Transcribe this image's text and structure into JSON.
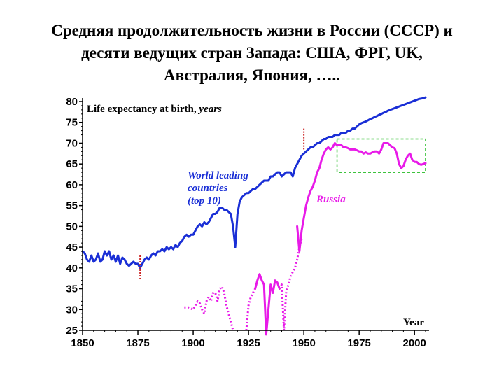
{
  "slide": {
    "title_lines": [
      "Средняя продолжительность жизни в России (СССР) и",
      "десяти ведущих стран Запада: США,  ФРГ,  UK,",
      "Австралия,  Япония, ….."
    ]
  },
  "chart_data": {
    "type": "line",
    "title": "Life expectancy at birth, years",
    "title_main": "Life expectancy at birth,",
    "title_unit": "years",
    "xlabel": "Year",
    "ylabel": "",
    "xlim": [
      1850,
      2005
    ],
    "ylim": [
      25,
      80
    ],
    "x_ticks": [
      1850,
      1875,
      1900,
      1925,
      1950,
      1975,
      2000
    ],
    "y_ticks": [
      25,
      30,
      35,
      40,
      45,
      50,
      55,
      60,
      65,
      70,
      75,
      80
    ],
    "grid": false,
    "annotations": [
      {
        "lines": [
          "World leading",
          "countries",
          "(top 10)"
        ],
        "color": "#1a2fd6"
      },
      {
        "lines": [
          "Russia"
        ],
        "color": "#e81ae8"
      }
    ],
    "colors": {
      "world": "#1a2fd6",
      "russia": "#e81ae8",
      "marker": "#cc2222",
      "box": "#22bb22"
    },
    "markers": [
      {
        "x": 1876,
        "y_from": 37,
        "y_to": 43
      },
      {
        "x": 1950,
        "y_from": 68.5,
        "y_to": 73.5
      }
    ],
    "highlight_box": {
      "x": [
        1965,
        2005
      ],
      "y": [
        63,
        71
      ]
    },
    "series": [
      {
        "name": "World leading countries (top 10)",
        "color": "#1a2fd6",
        "style": "solid",
        "points": [
          [
            1850,
            44
          ],
          [
            1851,
            43.5
          ],
          [
            1852,
            42
          ],
          [
            1853,
            41.5
          ],
          [
            1854,
            43
          ],
          [
            1855,
            41.5
          ],
          [
            1856,
            42
          ],
          [
            1857,
            43.5
          ],
          [
            1858,
            41.5
          ],
          [
            1859,
            42
          ],
          [
            1860,
            44
          ],
          [
            1861,
            43
          ],
          [
            1862,
            44
          ],
          [
            1863,
            42
          ],
          [
            1864,
            43
          ],
          [
            1865,
            41.5
          ],
          [
            1866,
            43
          ],
          [
            1867,
            41
          ],
          [
            1868,
            42.5
          ],
          [
            1869,
            42
          ],
          [
            1870,
            41
          ],
          [
            1871,
            40.5
          ],
          [
            1872,
            41
          ],
          [
            1873,
            41.5
          ],
          [
            1874,
            41
          ],
          [
            1875,
            41
          ],
          [
            1876,
            40
          ],
          [
            1877,
            41
          ],
          [
            1878,
            42
          ],
          [
            1879,
            42.5
          ],
          [
            1880,
            42
          ],
          [
            1881,
            43
          ],
          [
            1882,
            43.5
          ],
          [
            1883,
            43
          ],
          [
            1884,
            44
          ],
          [
            1885,
            44
          ],
          [
            1886,
            44.5
          ],
          [
            1887,
            44
          ],
          [
            1888,
            45
          ],
          [
            1889,
            44.5
          ],
          [
            1890,
            45
          ],
          [
            1891,
            44.5
          ],
          [
            1892,
            45.5
          ],
          [
            1893,
            45
          ],
          [
            1894,
            46
          ],
          [
            1895,
            46.5
          ],
          [
            1896,
            47.5
          ],
          [
            1897,
            48
          ],
          [
            1898,
            47.5
          ],
          [
            1899,
            48
          ],
          [
            1900,
            48
          ],
          [
            1901,
            49
          ],
          [
            1902,
            50
          ],
          [
            1903,
            50.5
          ],
          [
            1904,
            50
          ],
          [
            1905,
            51
          ],
          [
            1906,
            50.5
          ],
          [
            1907,
            51
          ],
          [
            1908,
            52
          ],
          [
            1909,
            53
          ],
          [
            1910,
            53
          ],
          [
            1911,
            53.5
          ],
          [
            1912,
            54.5
          ],
          [
            1913,
            54.5
          ],
          [
            1914,
            54
          ],
          [
            1915,
            54
          ],
          [
            1916,
            53.5
          ],
          [
            1917,
            53
          ],
          [
            1918,
            50
          ],
          [
            1919,
            45
          ],
          [
            1920,
            53
          ],
          [
            1921,
            56
          ],
          [
            1922,
            57
          ],
          [
            1923,
            57.5
          ],
          [
            1924,
            58
          ],
          [
            1925,
            58
          ],
          [
            1926,
            58.5
          ],
          [
            1927,
            59
          ],
          [
            1928,
            59
          ],
          [
            1929,
            59.5
          ],
          [
            1930,
            60
          ],
          [
            1931,
            60.5
          ],
          [
            1932,
            61
          ],
          [
            1933,
            61
          ],
          [
            1934,
            61
          ],
          [
            1935,
            62
          ],
          [
            1936,
            62
          ],
          [
            1937,
            62.5
          ],
          [
            1938,
            63
          ],
          [
            1939,
            63
          ],
          [
            1940,
            62
          ],
          [
            1941,
            62.5
          ],
          [
            1942,
            63
          ],
          [
            1943,
            63
          ],
          [
            1944,
            63
          ],
          [
            1945,
            62
          ],
          [
            1946,
            64
          ],
          [
            1947,
            65
          ],
          [
            1948,
            66
          ],
          [
            1949,
            67
          ],
          [
            1950,
            67.5
          ],
          [
            1951,
            68
          ],
          [
            1952,
            68.5
          ],
          [
            1953,
            69
          ],
          [
            1954,
            69
          ],
          [
            1955,
            69.5
          ],
          [
            1956,
            70
          ],
          [
            1957,
            70
          ],
          [
            1958,
            70.5
          ],
          [
            1959,
            71
          ],
          [
            1960,
            71
          ],
          [
            1961,
            71.5
          ],
          [
            1962,
            71.5
          ],
          [
            1963,
            71.5
          ],
          [
            1964,
            72
          ],
          [
            1965,
            72
          ],
          [
            1966,
            72
          ],
          [
            1967,
            72.5
          ],
          [
            1968,
            72.5
          ],
          [
            1969,
            72.5
          ],
          [
            1970,
            73
          ],
          [
            1971,
            73
          ],
          [
            1972,
            73.5
          ],
          [
            1973,
            73.5
          ],
          [
            1974,
            74
          ],
          [
            1975,
            74.5
          ],
          [
            1976,
            74.8
          ],
          [
            1977,
            75
          ],
          [
            1978,
            75.2
          ],
          [
            1979,
            75.5
          ],
          [
            1980,
            75.8
          ],
          [
            1981,
            76
          ],
          [
            1982,
            76.3
          ],
          [
            1983,
            76.5
          ],
          [
            1984,
            76.8
          ],
          [
            1985,
            77
          ],
          [
            1986,
            77.3
          ],
          [
            1987,
            77.5
          ],
          [
            1988,
            77.8
          ],
          [
            1989,
            78
          ],
          [
            1990,
            78.2
          ],
          [
            1991,
            78.4
          ],
          [
            1992,
            78.6
          ],
          [
            1993,
            78.8
          ],
          [
            1994,
            79
          ],
          [
            1995,
            79.2
          ],
          [
            1996,
            79.4
          ],
          [
            1997,
            79.6
          ],
          [
            1998,
            79.8
          ],
          [
            1999,
            80
          ],
          [
            2000,
            80.2
          ],
          [
            2001,
            80.4
          ],
          [
            2002,
            80.6
          ],
          [
            2003,
            80.7
          ],
          [
            2004,
            80.8
          ],
          [
            2005,
            81
          ]
        ]
      },
      {
        "name": "Russia",
        "color": "#e81ae8",
        "style": "dotted",
        "points": [
          [
            1896,
            30.5
          ],
          [
            1898,
            30.5
          ],
          [
            1900,
            30
          ],
          [
            1901,
            31
          ],
          [
            1902,
            32
          ],
          [
            1903,
            31.5
          ],
          [
            1904,
            30
          ],
          [
            1905,
            29
          ],
          [
            1906,
            32
          ],
          [
            1907,
            33
          ],
          [
            1908,
            32
          ],
          [
            1909,
            34
          ],
          [
            1910,
            34
          ],
          [
            1911,
            32
          ],
          [
            1912,
            35
          ],
          [
            1913,
            35.5
          ],
          [
            1914,
            34
          ],
          [
            1915,
            31
          ],
          [
            1916,
            29
          ],
          [
            1917,
            27
          ],
          [
            1918,
            25
          ]
        ]
      },
      {
        "name": "Russia",
        "color": "#e81ae8",
        "style": "dotted",
        "points": [
          [
            1924,
            25
          ],
          [
            1925,
            31
          ],
          [
            1926,
            33
          ],
          [
            1927,
            34
          ],
          [
            1928,
            35
          ]
        ]
      },
      {
        "name": "Russia",
        "color": "#e81ae8",
        "style": "solid",
        "points": [
          [
            1928,
            35
          ],
          [
            1929,
            37
          ],
          [
            1930,
            38.5
          ],
          [
            1931,
            37
          ],
          [
            1932,
            36
          ],
          [
            1933,
            24
          ],
          [
            1934,
            30
          ],
          [
            1935,
            36
          ],
          [
            1936,
            34
          ],
          [
            1937,
            37
          ],
          [
            1938,
            36.5
          ],
          [
            1939,
            35
          ]
        ]
      },
      {
        "name": "Russia",
        "color": "#e81ae8",
        "style": "dotted",
        "points": [
          [
            1939,
            35
          ],
          [
            1940,
            36
          ],
          [
            1941,
            25
          ],
          [
            1942,
            34
          ],
          [
            1943,
            36
          ],
          [
            1944,
            38
          ],
          [
            1945,
            39
          ],
          [
            1946,
            40
          ],
          [
            1947,
            42
          ],
          [
            1948,
            45
          ],
          [
            1949,
            47
          ]
        ]
      },
      {
        "name": "Russia",
        "color": "#e81ae8",
        "style": "solid",
        "points": [
          [
            1947,
            50
          ],
          [
            1948,
            44
          ],
          [
            1949,
            49
          ],
          [
            1950,
            52
          ],
          [
            1951,
            55
          ],
          [
            1952,
            57
          ],
          [
            1953,
            58.5
          ],
          [
            1954,
            59.5
          ],
          [
            1955,
            61
          ],
          [
            1956,
            63
          ],
          [
            1957,
            64
          ],
          [
            1958,
            66
          ],
          [
            1959,
            67.5
          ],
          [
            1960,
            68.5
          ],
          [
            1961,
            69
          ],
          [
            1962,
            68.5
          ],
          [
            1963,
            69
          ],
          [
            1964,
            70
          ],
          [
            1965,
            69.5
          ],
          [
            1966,
            69.5
          ],
          [
            1967,
            69.5
          ],
          [
            1968,
            69
          ],
          [
            1969,
            69
          ],
          [
            1970,
            68.8
          ],
          [
            1971,
            68.5
          ],
          [
            1972,
            68.5
          ],
          [
            1973,
            68.5
          ],
          [
            1974,
            68.3
          ],
          [
            1975,
            68
          ],
          [
            1976,
            68
          ],
          [
            1977,
            67.5
          ],
          [
            1978,
            67.8
          ],
          [
            1979,
            67.5
          ],
          [
            1980,
            67.5
          ],
          [
            1981,
            67.8
          ],
          [
            1982,
            68
          ],
          [
            1983,
            68
          ],
          [
            1984,
            67.5
          ],
          [
            1985,
            68.5
          ],
          [
            1986,
            70
          ],
          [
            1987,
            70
          ],
          [
            1988,
            70
          ],
          [
            1989,
            69.5
          ],
          [
            1990,
            69
          ],
          [
            1991,
            68.8
          ],
          [
            1992,
            67.5
          ],
          [
            1993,
            65
          ],
          [
            1994,
            64
          ],
          [
            1995,
            64.5
          ],
          [
            1996,
            66
          ],
          [
            1997,
            67
          ],
          [
            1998,
            67.5
          ],
          [
            1999,
            66
          ],
          [
            2000,
            65.5
          ],
          [
            2001,
            65.5
          ],
          [
            2002,
            65
          ],
          [
            2003,
            64.8
          ],
          [
            2004,
            65
          ],
          [
            2005,
            65.2
          ]
        ]
      }
    ]
  }
}
